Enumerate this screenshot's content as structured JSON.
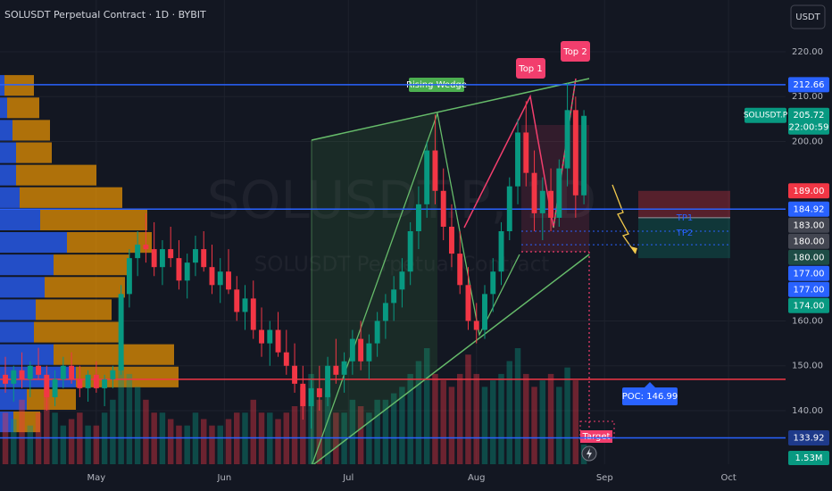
{
  "chart_data": {
    "type": "candlestick",
    "title": "SOLUSDT Perpetual Contract · 1D · BYBIT",
    "watermark": "SOLUSDT.P, 1D",
    "watermark_subtitle": "SOLUSDT Perpetual Contract",
    "currency": "USDT",
    "symbol_tag": "SOLUSDT.P",
    "countdown": "22:00:59",
    "ylim": [
      128.06,
      231.54
    ],
    "yticks": [
      {
        "value": 140,
        "label": "140.00"
      },
      {
        "value": 150,
        "label": "150.00"
      },
      {
        "value": 160,
        "label": "160.00"
      },
      {
        "value": 200,
        "label": "200.00"
      },
      {
        "value": 210,
        "label": "210.00"
      },
      {
        "value": 220,
        "label": "220.00"
      }
    ],
    "xlim": [
      -23.3,
      166.8
    ],
    "xticks": [
      {
        "value": 0,
        "label": "May"
      },
      {
        "value": 31,
        "label": "Jun"
      },
      {
        "value": 61,
        "label": "Jul"
      },
      {
        "value": 92,
        "label": "Aug"
      },
      {
        "value": 123,
        "label": "Sep"
      },
      {
        "value": 153,
        "label": "Oct"
      }
    ],
    "up_color": "#089981",
    "down_color": "#f23645",
    "x": [
      -22,
      -20,
      -18,
      -16,
      -14,
      -12,
      -10,
      -8,
      -6,
      -4,
      -2,
      0,
      2,
      4,
      6,
      8,
      10,
      12,
      14,
      16,
      18,
      20,
      22,
      24,
      26,
      28,
      30,
      32,
      34,
      36,
      38,
      40,
      42,
      44,
      46,
      48,
      50,
      52,
      54,
      56,
      58,
      60,
      62,
      64,
      66,
      68,
      70,
      72,
      74,
      76,
      78,
      80,
      82,
      84,
      86,
      88,
      90,
      92,
      94,
      96,
      98,
      100,
      102,
      104,
      106,
      108,
      110,
      112,
      114,
      116,
      118
    ],
    "candles": [
      [
        148,
        152,
        144,
        146
      ],
      [
        146,
        150,
        142,
        149
      ],
      [
        149,
        153,
        145,
        147
      ],
      [
        147,
        151,
        143,
        150
      ],
      [
        150,
        154,
        147,
        148
      ],
      [
        148,
        150,
        140,
        143
      ],
      [
        143,
        149,
        141,
        147
      ],
      [
        147,
        152,
        145,
        150
      ],
      [
        150,
        153,
        146,
        147
      ],
      [
        147,
        150,
        143,
        145
      ],
      [
        145,
        149,
        142,
        148
      ],
      [
        148,
        151,
        144,
        145
      ],
      [
        145,
        148,
        141,
        147
      ],
      [
        147,
        150,
        145,
        149
      ],
      [
        149,
        168,
        148,
        166
      ],
      [
        166,
        176,
        163,
        174
      ],
      [
        174,
        180,
        170,
        177
      ],
      [
        177,
        184,
        173,
        176
      ],
      [
        176,
        182,
        170,
        172
      ],
      [
        172,
        178,
        168,
        176
      ],
      [
        176,
        181,
        172,
        174
      ],
      [
        174,
        178,
        167,
        169
      ],
      [
        169,
        175,
        165,
        173
      ],
      [
        173,
        179,
        170,
        176
      ],
      [
        176,
        180,
        171,
        172
      ],
      [
        172,
        177,
        166,
        168
      ],
      [
        168,
        174,
        164,
        171
      ],
      [
        171,
        176,
        166,
        167
      ],
      [
        167,
        170,
        160,
        162
      ],
      [
        162,
        168,
        158,
        165
      ],
      [
        165,
        169,
        156,
        158
      ],
      [
        158,
        163,
        152,
        155
      ],
      [
        155,
        160,
        150,
        158
      ],
      [
        158,
        162,
        152,
        153
      ],
      [
        153,
        158,
        148,
        150
      ],
      [
        150,
        155,
        144,
        146
      ],
      [
        146,
        150,
        138,
        141
      ],
      [
        141,
        147,
        136,
        145
      ],
      [
        145,
        150,
        140,
        143
      ],
      [
        143,
        152,
        141,
        150
      ],
      [
        150,
        156,
        146,
        148
      ],
      [
        148,
        153,
        144,
        151
      ],
      [
        151,
        158,
        148,
        156
      ],
      [
        156,
        160,
        149,
        151
      ],
      [
        151,
        157,
        147,
        155
      ],
      [
        155,
        162,
        152,
        160
      ],
      [
        160,
        166,
        156,
        164
      ],
      [
        164,
        170,
        160,
        167
      ],
      [
        167,
        174,
        163,
        171
      ],
      [
        171,
        182,
        168,
        180
      ],
      [
        180,
        190,
        176,
        186
      ],
      [
        186,
        200,
        183,
        198
      ],
      [
        198,
        206,
        186,
        189
      ],
      [
        189,
        194,
        178,
        181
      ],
      [
        181,
        186,
        172,
        175
      ],
      [
        175,
        180,
        166,
        168
      ],
      [
        168,
        172,
        158,
        160
      ],
      [
        160,
        164,
        155,
        158
      ],
      [
        158,
        168,
        156,
        166
      ],
      [
        166,
        174,
        162,
        171
      ],
      [
        171,
        182,
        168,
        180
      ],
      [
        180,
        192,
        178,
        190
      ],
      [
        190,
        205,
        186,
        202
      ],
      [
        202,
        209,
        190,
        193
      ],
      [
        193,
        198,
        180,
        184
      ],
      [
        184,
        192,
        178,
        189
      ],
      [
        189,
        194,
        180,
        183
      ],
      [
        183,
        196,
        181,
        194
      ],
      [
        194,
        213,
        190,
        207
      ],
      [
        207,
        210,
        183,
        188
      ],
      [
        188,
        207,
        186,
        205.72
      ]
    ],
    "volumes": [
      4,
      3.5,
      5,
      3,
      4,
      6,
      4,
      3,
      3.5,
      4,
      3,
      3,
      4,
      5,
      8,
      7,
      6,
      5,
      4,
      4,
      3.5,
      3,
      3,
      4,
      3.5,
      3,
      3,
      3.5,
      4,
      4,
      5,
      4,
      4,
      3.5,
      4,
      4.5,
      6,
      7,
      5,
      5.5,
      4,
      4,
      5,
      4.5,
      4,
      5,
      5,
      5.5,
      6,
      7,
      8,
      9,
      7,
      6.5,
      6,
      7,
      8.5,
      7,
      6,
      6.5,
      7,
      8,
      9,
      7,
      6,
      6.5,
      7,
      6,
      7.5,
      6.5,
      1.53
    ],
    "volume_label": "1.53M",
    "volume_profile": {
      "bins": [
        215,
        210,
        205,
        200,
        195,
        190,
        185,
        180,
        175,
        170,
        165,
        160,
        155,
        150,
        145,
        140,
        135
      ],
      "buy": [
        5,
        8,
        14,
        18,
        18,
        22,
        45,
        75,
        60,
        50,
        40,
        38,
        60,
        85,
        30,
        15
      ],
      "sell": [
        33,
        36,
        42,
        40,
        90,
        115,
        120,
        95,
        85,
        90,
        85,
        100,
        135,
        115,
        55,
        30
      ]
    },
    "lines": [
      {
        "level": 0,
        "color": "#2962ff"
      },
      {
        "level": 3,
        "color": "#2962ff"
      },
      {
        "level": 10,
        "color": "#2962ff"
      }
    ],
    "poc_line": 146.99,
    "poc_color": "#f23645",
    "price_labels": [
      {
        "value": 212.66,
        "label": "212.66",
        "color": "#2962ff"
      },
      {
        "value": 205.72,
        "label": "205.72",
        "color": "#089981"
      },
      {
        "value": 189,
        "label": "189.00",
        "color": "#f23645"
      },
      {
        "value": 184.92,
        "label": "184.92",
        "color": "#2962ff"
      },
      {
        "value": 183,
        "label": "183.00",
        "color": "#434651"
      },
      {
        "value": 180,
        "label": "180.00",
        "color": "#434651"
      },
      {
        "value": 180,
        "label": "180.00",
        "color": "#1e4d46"
      },
      {
        "value": 177,
        "label": "177.00",
        "color": "#2962ff"
      },
      {
        "value": 177,
        "label": "177.00",
        "color": "#2962ff"
      },
      {
        "value": 174,
        "label": "174.00",
        "color": "#089981"
      },
      {
        "value": 133.92,
        "label": "133.92",
        "color": "#1e3a8a"
      }
    ],
    "annotations": {
      "rising_wedge": "Rising Wedge",
      "top1": "Top 1",
      "top2": "Top 2",
      "tp1": "TP1",
      "tp2": "TP2",
      "poc": "POC: 146.99",
      "target": "Target"
    }
  }
}
